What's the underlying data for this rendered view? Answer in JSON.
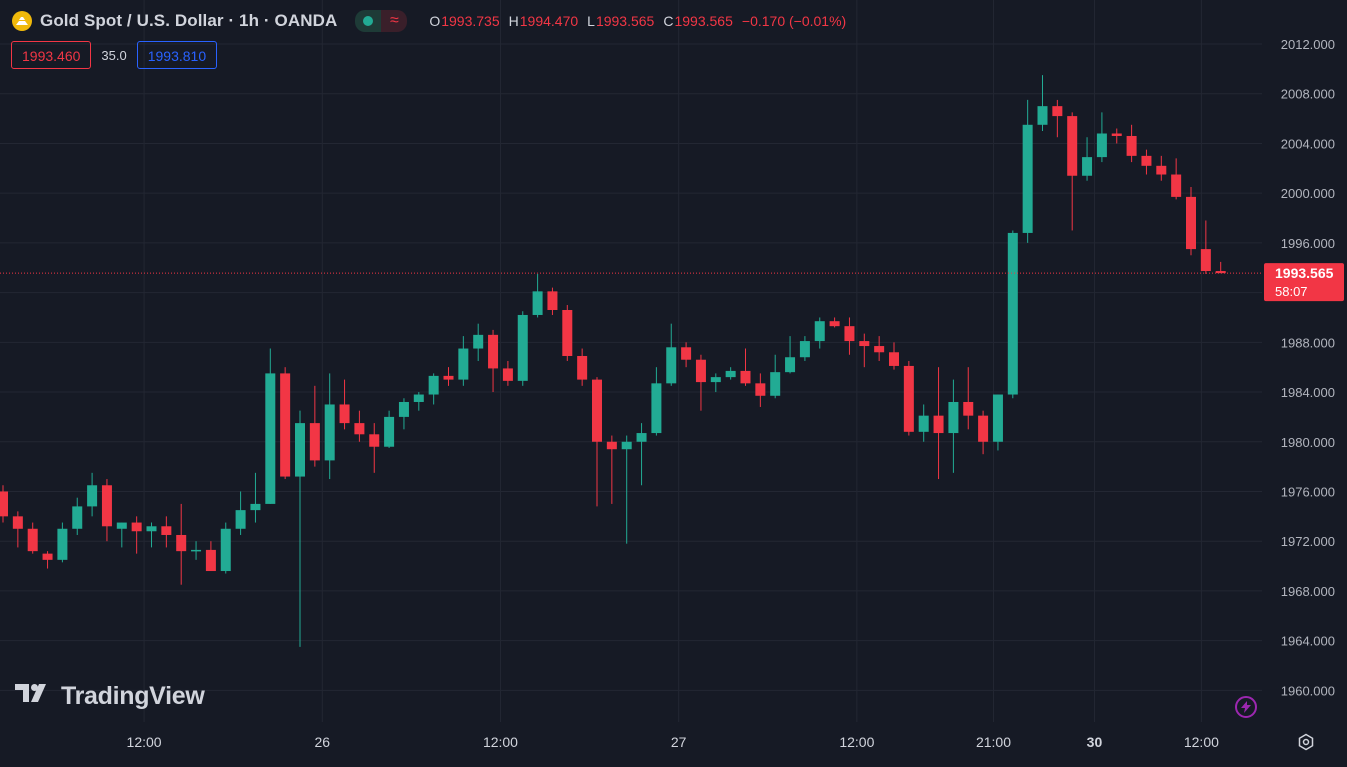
{
  "header": {
    "symbol_title": "Gold Spot / U.S. Dollar · 1h · OANDA",
    "ohlc": {
      "o_label": "O",
      "o_value": "1993.735",
      "h_label": "H",
      "h_value": "1994.470",
      "l_label": "L",
      "l_value": "1993.565",
      "c_label": "C",
      "c_value": "1993.565",
      "change": "−0.170 (−0.01%)"
    },
    "sell_price": "1993.460",
    "spread": "35.0",
    "buy_price": "1993.810"
  },
  "watermark": "TradingView",
  "current_price": {
    "value": "1993.565",
    "countdown": "58:07"
  },
  "colors": {
    "background": "#161a25",
    "grid": "#232733",
    "up": "#22ab94",
    "down": "#f23645",
    "text": "#d1d4dc",
    "axis_text": "#b2b5be",
    "accent_blue": "#2962ff"
  },
  "icons": [
    "gold-coin-icon",
    "market-open-icon",
    "wave-icon",
    "tradingview-logo-icon",
    "lightning-icon",
    "settings-icon"
  ],
  "chart_data": {
    "type": "candlestick",
    "title": "Gold Spot / U.S. Dollar · 1h · OANDA",
    "ylim": [
      1957.5,
      2014.4
    ],
    "y_ticks": [
      "1960.000",
      "1964.000",
      "1968.000",
      "1972.000",
      "1976.000",
      "1980.000",
      "1984.000",
      "1988.000",
      "1992.000",
      "1996.000",
      "2000.000",
      "2004.000",
      "2008.000",
      "2012.000"
    ],
    "x_ticks": [
      {
        "label": "12:00",
        "index": 9.5,
        "bold": false
      },
      {
        "label": "26",
        "index": 21.5,
        "bold": false
      },
      {
        "label": "12:00",
        "index": 33.5,
        "bold": false
      },
      {
        "label": "27",
        "index": 45.5,
        "bold": false
      },
      {
        "label": "12:00",
        "index": 57.5,
        "bold": false
      },
      {
        "label": "21:00",
        "index": 66.7,
        "bold": false
      },
      {
        "label": "30",
        "index": 73.5,
        "bold": true
      },
      {
        "label": "12:00",
        "index": 80.7,
        "bold": false
      }
    ],
    "grid": true,
    "last_price": 1993.565,
    "candles": [
      [
        1976.0,
        1976.5,
        1973.5,
        1974.0
      ],
      [
        1974.0,
        1974.4,
        1971.5,
        1973.0
      ],
      [
        1973.0,
        1973.5,
        1971.0,
        1971.2
      ],
      [
        1971.0,
        1971.2,
        1969.8,
        1970.5
      ],
      [
        1970.5,
        1973.5,
        1970.3,
        1973.0
      ],
      [
        1973.0,
        1975.5,
        1972.5,
        1974.8
      ],
      [
        1974.8,
        1977.5,
        1974.0,
        1976.5
      ],
      [
        1976.5,
        1977.0,
        1972.0,
        1973.2
      ],
      [
        1973.0,
        1973.5,
        1971.5,
        1973.5
      ],
      [
        1973.5,
        1974.0,
        1971.0,
        1972.8
      ],
      [
        1972.8,
        1973.5,
        1971.5,
        1973.2
      ],
      [
        1973.2,
        1974.0,
        1971.5,
        1972.5
      ],
      [
        1972.5,
        1975.0,
        1968.5,
        1971.2
      ],
      [
        1971.2,
        1972.0,
        1970.5,
        1971.3
      ],
      [
        1971.3,
        1972.0,
        1969.8,
        1969.6
      ],
      [
        1969.6,
        1973.5,
        1969.4,
        1973.0
      ],
      [
        1973.0,
        1976.0,
        1972.5,
        1974.5
      ],
      [
        1974.5,
        1977.5,
        1973.5,
        1975.0
      ],
      [
        1975.0,
        1987.5,
        1975.0,
        1985.5
      ],
      [
        1985.5,
        1986.0,
        1977.0,
        1977.2
      ],
      [
        1977.2,
        1982.5,
        1963.5,
        1981.5
      ],
      [
        1981.5,
        1984.5,
        1978.0,
        1978.5
      ],
      [
        1978.5,
        1985.5,
        1977.0,
        1983.0
      ],
      [
        1983.0,
        1985.0,
        1981.0,
        1981.5
      ],
      [
        1981.5,
        1982.5,
        1980.0,
        1980.6
      ],
      [
        1980.6,
        1981.5,
        1977.5,
        1979.6
      ],
      [
        1979.6,
        1982.5,
        1979.5,
        1982.0
      ],
      [
        1982.0,
        1983.5,
        1981.0,
        1983.2
      ],
      [
        1983.2,
        1984.0,
        1982.5,
        1983.8
      ],
      [
        1983.8,
        1985.5,
        1983.0,
        1985.3
      ],
      [
        1985.3,
        1986.0,
        1984.5,
        1985.0
      ],
      [
        1985.0,
        1988.5,
        1984.5,
        1987.5
      ],
      [
        1987.5,
        1989.5,
        1986.5,
        1988.6
      ],
      [
        1988.6,
        1989.0,
        1984.0,
        1985.9
      ],
      [
        1985.9,
        1986.5,
        1984.5,
        1984.9
      ],
      [
        1984.9,
        1990.5,
        1984.5,
        1990.2
      ],
      [
        1990.2,
        1993.5,
        1990.0,
        1992.1
      ],
      [
        1992.1,
        1992.4,
        1990.2,
        1990.6
      ],
      [
        1990.6,
        1991.0,
        1986.5,
        1986.9
      ],
      [
        1986.9,
        1987.5,
        1984.5,
        1985.0
      ],
      [
        1985.0,
        1985.2,
        1974.8,
        1980.0
      ],
      [
        1980.0,
        1980.5,
        1975.0,
        1979.4
      ],
      [
        1979.4,
        1980.5,
        1971.8,
        1980.0
      ],
      [
        1980.0,
        1981.5,
        1976.5,
        1980.7
      ],
      [
        1980.7,
        1986.0,
        1980.5,
        1984.7
      ],
      [
        1984.7,
        1989.5,
        1984.5,
        1987.6
      ],
      [
        1987.6,
        1988.0,
        1986.0,
        1986.6
      ],
      [
        1986.6,
        1987.0,
        1982.5,
        1984.8
      ],
      [
        1984.8,
        1985.5,
        1984.0,
        1985.2
      ],
      [
        1985.2,
        1986.0,
        1985.0,
        1985.7
      ],
      [
        1985.7,
        1987.5,
        1984.5,
        1984.7
      ],
      [
        1984.7,
        1985.5,
        1982.8,
        1983.7
      ],
      [
        1983.7,
        1987.0,
        1983.5,
        1985.6
      ],
      [
        1985.6,
        1988.5,
        1985.5,
        1986.8
      ],
      [
        1986.8,
        1988.5,
        1986.5,
        1988.1
      ],
      [
        1988.1,
        1990.0,
        1987.5,
        1989.7
      ],
      [
        1989.7,
        1990.0,
        1989.2,
        1989.3
      ],
      [
        1989.3,
        1990.0,
        1987.0,
        1988.1
      ],
      [
        1988.1,
        1988.7,
        1986.0,
        1987.7
      ],
      [
        1987.7,
        1988.5,
        1986.5,
        1987.2
      ],
      [
        1987.2,
        1988.0,
        1985.8,
        1986.1
      ],
      [
        1986.1,
        1986.5,
        1980.5,
        1980.8
      ],
      [
        1980.8,
        1983.0,
        1980.0,
        1982.1
      ],
      [
        1982.1,
        1986.0,
        1977.0,
        1980.7
      ],
      [
        1980.7,
        1985.0,
        1977.5,
        1983.2
      ],
      [
        1983.2,
        1986.0,
        1981.0,
        1982.1
      ],
      [
        1982.1,
        1982.5,
        1979.0,
        1980.0
      ],
      [
        1980.0,
        1983.8,
        1979.3,
        1983.8
      ],
      [
        1983.8,
        1997.0,
        1983.5,
        1996.8
      ],
      [
        1996.8,
        2007.5,
        1996.0,
        2005.5
      ],
      [
        2005.5,
        2009.5,
        2005.0,
        2007.0
      ],
      [
        2007.0,
        2007.5,
        2004.5,
        2006.2
      ],
      [
        2006.2,
        2006.5,
        1997.0,
        2001.4
      ],
      [
        2001.4,
        2004.5,
        2001.0,
        2002.9
      ],
      [
        2002.9,
        2006.5,
        2002.5,
        2004.8
      ],
      [
        2004.8,
        2005.2,
        2004.0,
        2004.6
      ],
      [
        2004.6,
        2005.5,
        2002.5,
        2003.0
      ],
      [
        2003.0,
        2003.5,
        2001.5,
        2002.2
      ],
      [
        2002.2,
        2003.0,
        2001.0,
        2001.5
      ],
      [
        2001.5,
        2002.8,
        1999.5,
        1999.7
      ],
      [
        1999.7,
        2000.5,
        1995.0,
        1995.5
      ],
      [
        1995.5,
        1997.8,
        1993.5,
        1993.735
      ],
      [
        1993.735,
        1994.47,
        1993.565,
        1993.565
      ]
    ]
  }
}
